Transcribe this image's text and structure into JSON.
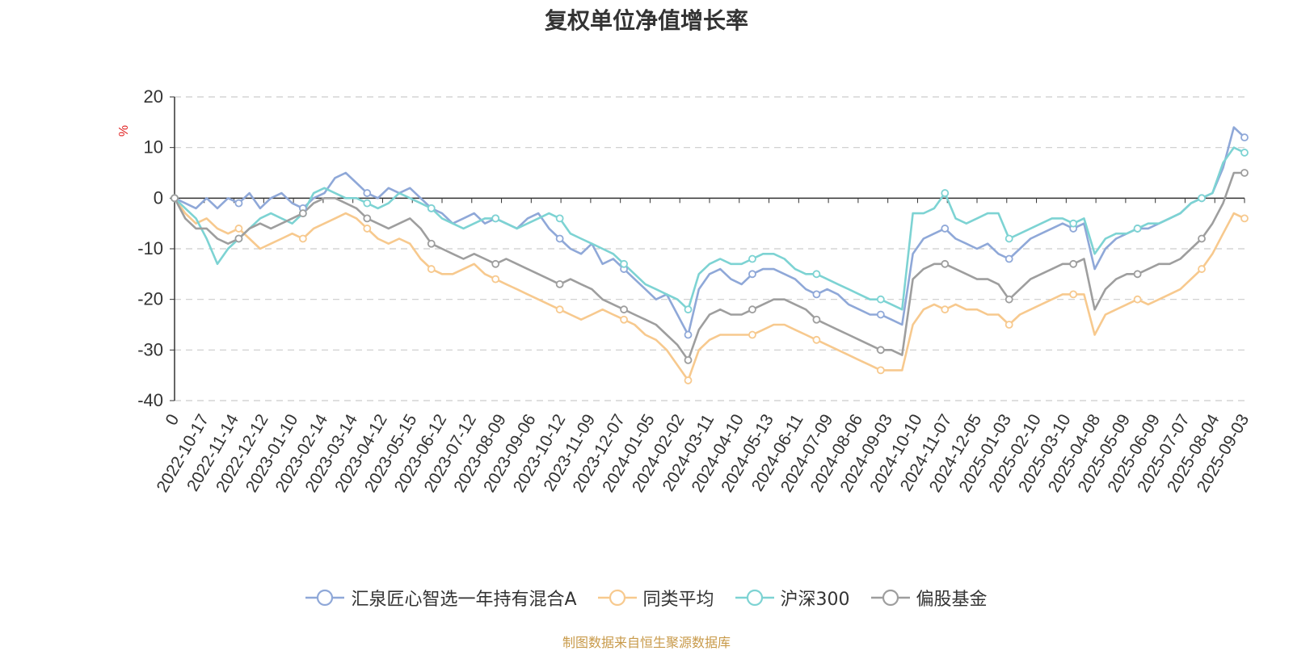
{
  "chart_data": {
    "type": "line",
    "title": "复权单位净值增长率",
    "ylabel": "%",
    "ylim": [
      -40,
      20
    ],
    "yticks": [
      "20",
      "10",
      "0",
      "-10",
      "-20",
      "-30",
      "-40"
    ],
    "x_tick_labels": [
      "0",
      "2022-10-17",
      "2022-11-14",
      "2022-12-12",
      "2023-01-10",
      "2023-02-14",
      "2023-03-14",
      "2023-04-12",
      "2023-05-15",
      "2023-06-12",
      "2023-07-12",
      "2023-08-09",
      "2023-09-06",
      "2023-10-12",
      "2023-11-09",
      "2023-12-07",
      "2024-01-05",
      "2024-02-02",
      "2024-03-11",
      "2024-04-10",
      "2024-05-13",
      "2024-06-11",
      "2024-07-09",
      "2024-08-06",
      "2024-09-03",
      "2024-10-10",
      "2024-11-07",
      "2024-12-05",
      "2025-01-03",
      "2025-02-10",
      "2025-03-10",
      "2025-04-08",
      "2025-05-09",
      "2025-06-09",
      "2025-07-07",
      "2025-08-04",
      "2025-09-03"
    ],
    "grid": "horizontal dashed",
    "legend_position": "bottom",
    "series": [
      {
        "name": "汇泉匠心智选一年持有混合A",
        "color": "#8fa8d8",
        "values": [
          0,
          -1,
          -2,
          0,
          -2,
          0,
          -1,
          1,
          -2,
          0,
          1,
          -1,
          -2,
          0,
          1,
          4,
          5,
          3,
          1,
          0,
          2,
          1,
          2,
          0,
          -2,
          -3,
          -5,
          -4,
          -3,
          -5,
          -4,
          -5,
          -6,
          -4,
          -3,
          -6,
          -8,
          -10,
          -11,
          -9,
          -13,
          -12,
          -14,
          -16,
          -18,
          -20,
          -19,
          -23,
          -27,
          -18,
          -15,
          -14,
          -16,
          -17,
          -15,
          -14,
          -14,
          -15,
          -16,
          -18,
          -19,
          -18,
          -19,
          -21,
          -22,
          -23,
          -23,
          -24,
          -25,
          -11,
          -8,
          -7,
          -6,
          -8,
          -9,
          -10,
          -9,
          -11,
          -12,
          -10,
          -8,
          -7,
          -6,
          -5,
          -6,
          -5,
          -14,
          -10,
          -8,
          -7,
          -6,
          -6,
          -5,
          -4,
          -3,
          -1,
          0,
          1,
          6,
          14,
          12
        ]
      },
      {
        "name": "同类平均",
        "color": "#f7c98e",
        "values": [
          0,
          -3,
          -5,
          -4,
          -6,
          -7,
          -6,
          -8,
          -10,
          -9,
          -8,
          -7,
          -8,
          -6,
          -5,
          -4,
          -3,
          -4,
          -6,
          -8,
          -9,
          -8,
          -9,
          -12,
          -14,
          -15,
          -15,
          -14,
          -13,
          -15,
          -16,
          -17,
          -18,
          -19,
          -20,
          -21,
          -22,
          -23,
          -24,
          -23,
          -22,
          -23,
          -24,
          -25,
          -27,
          -28,
          -30,
          -33,
          -36,
          -30,
          -28,
          -27,
          -27,
          -27,
          -27,
          -26,
          -25,
          -25,
          -26,
          -27,
          -28,
          -29,
          -30,
          -31,
          -32,
          -33,
          -34,
          -34,
          -34,
          -25,
          -22,
          -21,
          -22,
          -21,
          -22,
          -22,
          -23,
          -23,
          -25,
          -23,
          -22,
          -21,
          -20,
          -19,
          -19,
          -19,
          -27,
          -23,
          -22,
          -21,
          -20,
          -21,
          -20,
          -19,
          -18,
          -16,
          -14,
          -11,
          -7,
          -3,
          -4
        ]
      },
      {
        "name": "沪深300",
        "color": "#7dd3d3",
        "values": [
          0,
          -2,
          -4,
          -8,
          -13,
          -10,
          -8,
          -6,
          -4,
          -3,
          -4,
          -5,
          -3,
          1,
          2,
          1,
          0,
          0,
          -1,
          -2,
          -1,
          1,
          0,
          -1,
          -2,
          -4,
          -5,
          -6,
          -5,
          -4,
          -4,
          -5,
          -6,
          -5,
          -4,
          -3,
          -4,
          -7,
          -8,
          -9,
          -10,
          -11,
          -13,
          -15,
          -17,
          -18,
          -19,
          -20,
          -22,
          -15,
          -13,
          -12,
          -13,
          -13,
          -12,
          -11,
          -11,
          -12,
          -14,
          -15,
          -15,
          -16,
          -17,
          -18,
          -19,
          -20,
          -20,
          -21,
          -22,
          -3,
          -3,
          -2,
          1,
          -4,
          -5,
          -4,
          -3,
          -3,
          -8,
          -7,
          -6,
          -5,
          -4,
          -4,
          -5,
          -4,
          -11,
          -8,
          -7,
          -7,
          -6,
          -5,
          -5,
          -4,
          -3,
          -1,
          0,
          1,
          7,
          10,
          9
        ]
      },
      {
        "name": "偏股基金",
        "color": "#9e9e9e",
        "values": [
          0,
          -4,
          -6,
          -6,
          -8,
          -9,
          -8,
          -6,
          -5,
          -6,
          -5,
          -4,
          -3,
          -1,
          0,
          0,
          -1,
          -2,
          -4,
          -5,
          -6,
          -5,
          -4,
          -6,
          -9,
          -10,
          -11,
          -12,
          -11,
          -12,
          -13,
          -12,
          -13,
          -14,
          -15,
          -16,
          -17,
          -16,
          -17,
          -18,
          -20,
          -21,
          -22,
          -23,
          -24,
          -25,
          -27,
          -29,
          -32,
          -26,
          -23,
          -22,
          -23,
          -23,
          -22,
          -21,
          -20,
          -20,
          -21,
          -22,
          -24,
          -25,
          -26,
          -27,
          -28,
          -29,
          -30,
          -30,
          -31,
          -16,
          -14,
          -13,
          -13,
          -14,
          -15,
          -16,
          -16,
          -17,
          -20,
          -18,
          -16,
          -15,
          -14,
          -13,
          -13,
          -12,
          -22,
          -18,
          -16,
          -15,
          -15,
          -14,
          -13,
          -13,
          -12,
          -10,
          -8,
          -5,
          -1,
          5,
          5
        ]
      }
    ],
    "source_note": "制图数据来自恒生聚源数据库"
  }
}
